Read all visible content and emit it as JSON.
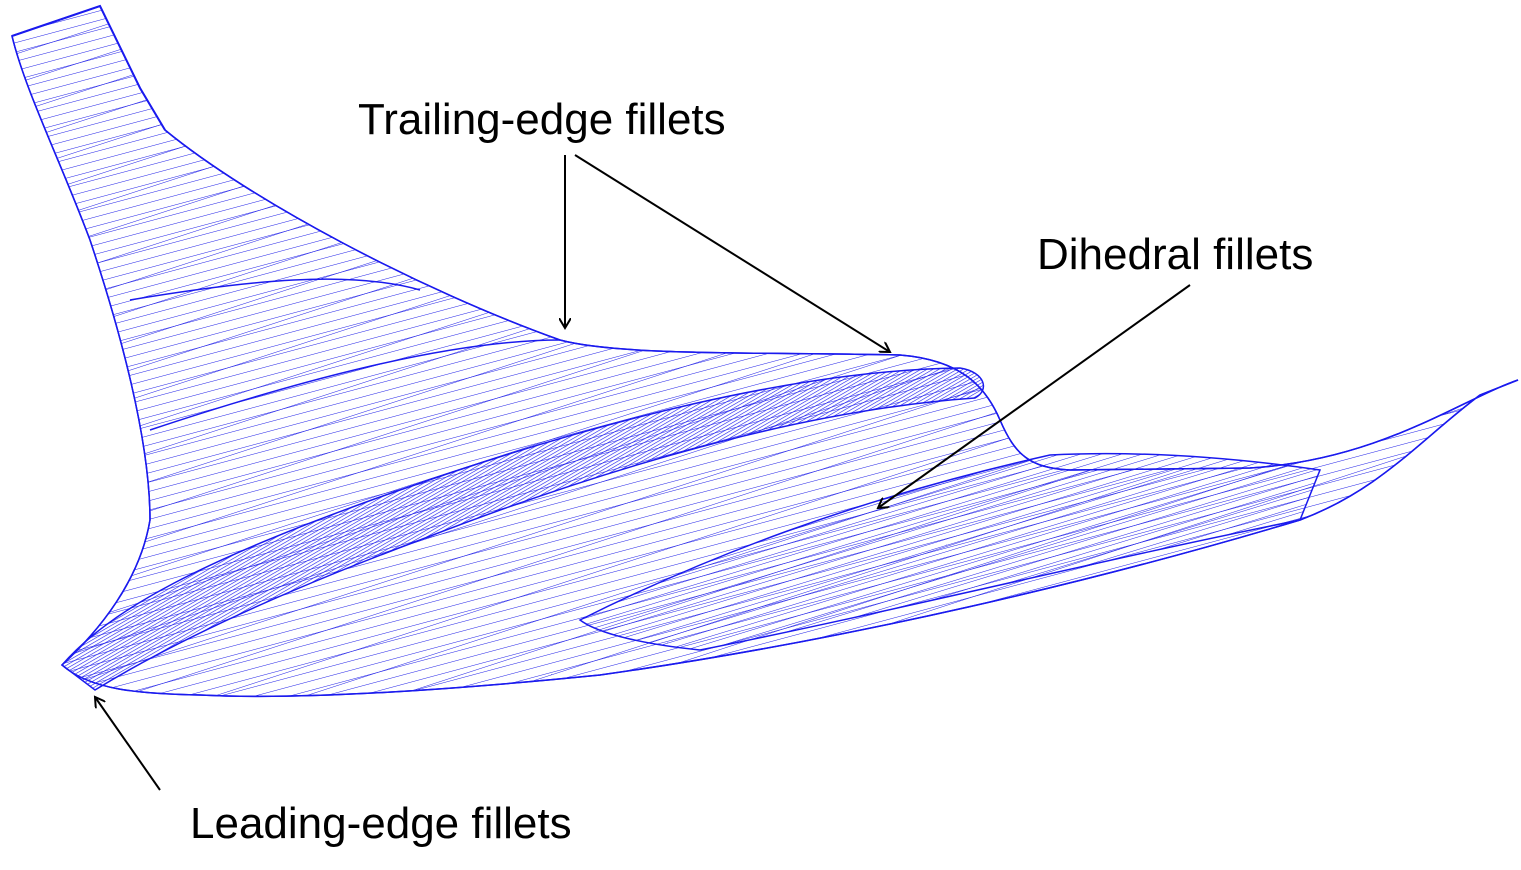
{
  "annotations": {
    "trailing_edge": "Trailing-edge fillets",
    "dihedral": "Dihedral fillets",
    "leading_edge": "Leading-edge fillets"
  }
}
